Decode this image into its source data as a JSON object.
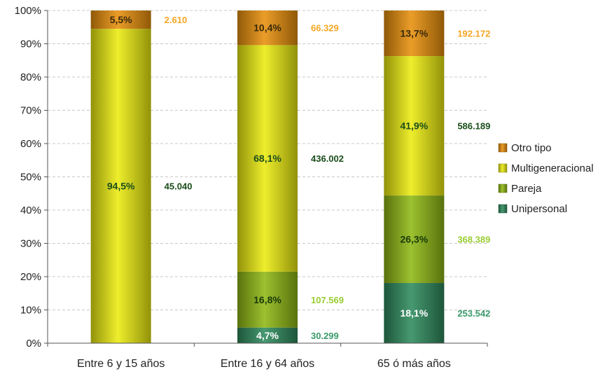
{
  "chart_data": {
    "type": "bar",
    "stacked": true,
    "normalized": true,
    "categories": [
      "Entre 6 y 15 años",
      "Entre 16 y 64 años",
      "65 ó más años"
    ],
    "ylim": [
      0,
      100
    ],
    "y_ticks": [
      "0%",
      "10%",
      "20%",
      "30%",
      "40%",
      "50%",
      "60%",
      "70%",
      "80%",
      "90%",
      "100%"
    ],
    "grid": true,
    "legend_position": "right",
    "series": [
      {
        "name": "Unipersonal",
        "values": [
          0,
          4.7,
          18.1
        ],
        "labels": [
          "",
          "4,7%",
          "18,1%"
        ],
        "counts": [
          "",
          "30.299",
          "253.542"
        ],
        "color": "#2e8b5e",
        "label_color": "#ffffff",
        "count_color": "#3a9a6a"
      },
      {
        "name": "Pareja",
        "values": [
          0,
          16.8,
          26.3
        ],
        "labels": [
          "",
          "16,8%",
          "26,3%"
        ],
        "counts": [
          "",
          "107.569",
          "368.389"
        ],
        "color": "#8fb814",
        "label_color": "#1a3a0a",
        "count_color": "#9acd32"
      },
      {
        "name": "Multigeneracional",
        "values": [
          94.5,
          68.1,
          41.9
        ],
        "labels": [
          "94,5%",
          "68,1%",
          "41,9%"
        ],
        "counts": [
          "45.040",
          "436.002",
          "586.189"
        ],
        "color": "#ecec10",
        "label_color": "#1a4d1a",
        "count_color": "#1a4d1a"
      },
      {
        "name": "Otro tipo",
        "values": [
          5.5,
          10.4,
          13.7
        ],
        "labels": [
          "5,5%",
          "10,4%",
          "13,7%"
        ],
        "counts": [
          "2.610",
          "66.329",
          "192.172"
        ],
        "color": "#e8900c",
        "label_color": "#3a2a0a",
        "count_color": "#f5a623"
      }
    ],
    "legend_order": [
      "Otro tipo",
      "Multigeneracional",
      "Pareja",
      "Unipersonal"
    ]
  }
}
